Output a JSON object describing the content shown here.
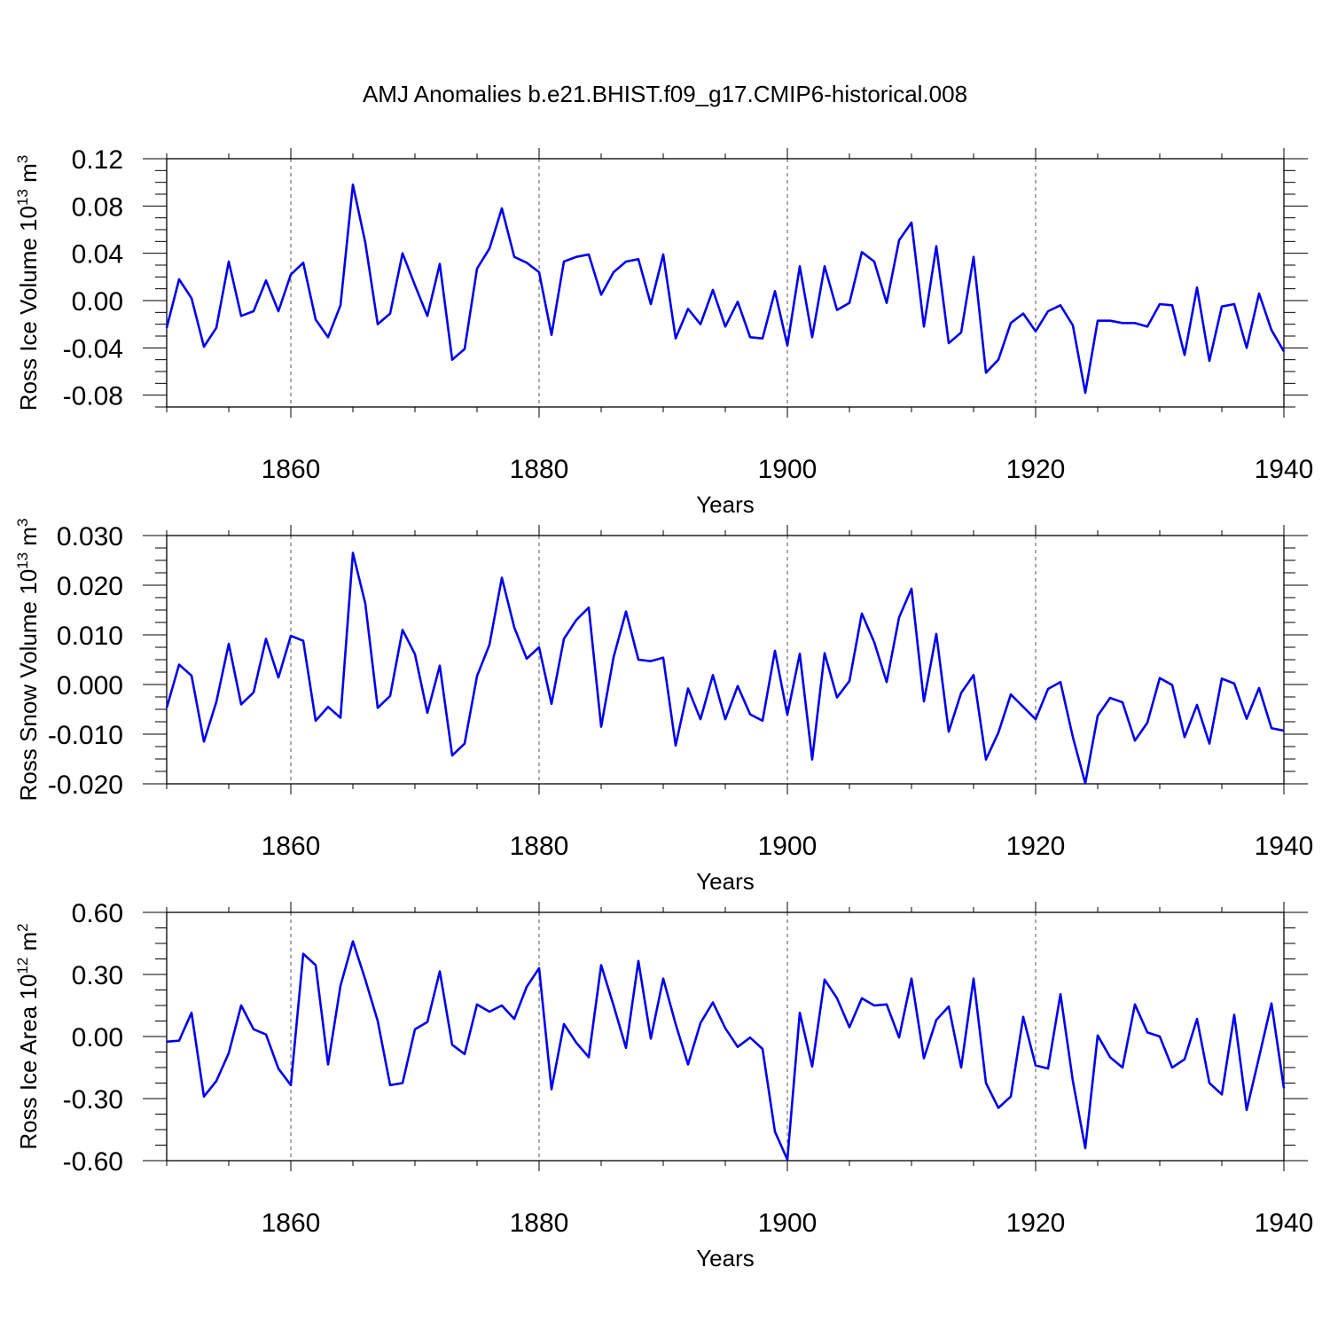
{
  "figure": {
    "title": "AMJ Anomalies b.e21.BHIST.f09_g17.CMIP6-historical.008"
  },
  "chart_data": [
    {
      "type": "line",
      "title": "",
      "xlabel": "Years",
      "ylabel": "Ross Ice Volume 10",
      "ylabel_exponent": "13",
      "ylabel_unit": "m",
      "ylabel_unit_exponent": "3",
      "xlim": [
        1850,
        1940
      ],
      "ylim": [
        -0.09,
        0.12
      ],
      "xticks": [
        1860,
        1880,
        1900,
        1920,
        1940
      ],
      "xtick_labels": [
        "1860",
        "1880",
        "1900",
        "1920",
        "1940"
      ],
      "yticks": [
        0.12,
        0.08,
        0.04,
        0.0,
        -0.04,
        -0.08
      ],
      "ytick_labels": [
        "0.12",
        "0.08",
        "0.04",
        "0.00",
        "-0.04",
        "-0.08"
      ],
      "grid": "dashed vertical lines at major x ticks",
      "line_color": "#0000ee",
      "x": [
        1850,
        1851,
        1852,
        1853,
        1854,
        1855,
        1856,
        1857,
        1858,
        1859,
        1860,
        1861,
        1862,
        1863,
        1864,
        1865,
        1866,
        1867,
        1868,
        1869,
        1870,
        1871,
        1872,
        1873,
        1874,
        1875,
        1876,
        1877,
        1878,
        1879,
        1880,
        1881,
        1882,
        1883,
        1884,
        1885,
        1886,
        1887,
        1888,
        1889,
        1890,
        1891,
        1892,
        1893,
        1894,
        1895,
        1896,
        1897,
        1898,
        1899,
        1900,
        1901,
        1902,
        1903,
        1904,
        1905,
        1906,
        1907,
        1908,
        1909,
        1910,
        1911,
        1912,
        1913,
        1914,
        1915,
        1916,
        1917,
        1918,
        1919,
        1920,
        1921,
        1922,
        1923,
        1924,
        1925,
        1926,
        1927,
        1928,
        1929,
        1930,
        1931,
        1932,
        1933,
        1934,
        1935,
        1936,
        1937,
        1938,
        1939,
        1940
      ],
      "series": [
        {
          "values": [
            -0.023,
            0.018,
            0.002,
            -0.039,
            -0.023,
            0.033,
            -0.013,
            -0.009,
            0.017,
            -0.009,
            0.022,
            0.032,
            -0.016,
            -0.031,
            -0.004,
            0.098,
            0.049,
            -0.02,
            -0.011,
            0.04,
            0.013,
            -0.013,
            0.031,
            -0.05,
            -0.041,
            0.027,
            0.044,
            0.078,
            0.037,
            0.032,
            0.024,
            -0.029,
            0.033,
            0.037,
            0.039,
            0.005,
            0.024,
            0.033,
            0.035,
            -0.003,
            0.039,
            -0.032,
            -0.007,
            -0.02,
            0.009,
            -0.022,
            -0.001,
            -0.031,
            -0.032,
            0.008,
            -0.038,
            0.029,
            -0.031,
            0.029,
            -0.008,
            -0.002,
            0.041,
            0.033,
            -0.002,
            0.051,
            0.066,
            -0.022,
            0.046,
            -0.036,
            -0.027,
            0.037,
            -0.061,
            -0.05,
            -0.019,
            -0.011,
            -0.026,
            -0.009,
            -0.004,
            -0.021,
            -0.078,
            -0.017,
            -0.017,
            -0.019,
            -0.019,
            -0.022,
            -0.003,
            -0.004,
            -0.046,
            0.011,
            -0.051,
            -0.005,
            -0.003,
            -0.04,
            0.006,
            -0.025,
            -0.043
          ]
        }
      ]
    },
    {
      "type": "line",
      "title": "",
      "xlabel": "Years",
      "ylabel": "Ross Snow Volume 10",
      "ylabel_exponent": "13",
      "ylabel_unit": "m",
      "ylabel_unit_exponent": "3",
      "xlim": [
        1850,
        1940
      ],
      "ylim": [
        -0.02,
        0.03
      ],
      "xticks": [
        1860,
        1880,
        1900,
        1920,
        1940
      ],
      "xtick_labels": [
        "1860",
        "1880",
        "1900",
        "1920",
        "1940"
      ],
      "yticks": [
        0.03,
        0.02,
        0.01,
        0.0,
        -0.01,
        -0.02
      ],
      "ytick_labels": [
        "0.030",
        "0.020",
        "0.010",
        "0.000",
        "-0.010",
        "-0.020"
      ],
      "grid": "dashed vertical lines at major x ticks",
      "line_color": "#0000ee",
      "x": [
        1850,
        1851,
        1852,
        1853,
        1854,
        1855,
        1856,
        1857,
        1858,
        1859,
        1860,
        1861,
        1862,
        1863,
        1864,
        1865,
        1866,
        1867,
        1868,
        1869,
        1870,
        1871,
        1872,
        1873,
        1874,
        1875,
        1876,
        1877,
        1878,
        1879,
        1880,
        1881,
        1882,
        1883,
        1884,
        1885,
        1886,
        1887,
        1888,
        1889,
        1890,
        1891,
        1892,
        1893,
        1894,
        1895,
        1896,
        1897,
        1898,
        1899,
        1900,
        1901,
        1902,
        1903,
        1904,
        1905,
        1906,
        1907,
        1908,
        1909,
        1910,
        1911,
        1912,
        1913,
        1914,
        1915,
        1916,
        1917,
        1918,
        1919,
        1920,
        1921,
        1922,
        1923,
        1924,
        1925,
        1926,
        1927,
        1928,
        1929,
        1930,
        1931,
        1932,
        1933,
        1934,
        1935,
        1936,
        1937,
        1938,
        1939,
        1940
      ],
      "series": [
        {
          "values": [
            -0.0047,
            0.004,
            0.0018,
            -0.0115,
            -0.0035,
            0.0082,
            -0.004,
            -0.0016,
            0.0092,
            0.0014,
            0.0098,
            0.0088,
            -0.0073,
            -0.0045,
            -0.0067,
            0.0265,
            0.0163,
            -0.0047,
            -0.0023,
            0.011,
            0.0061,
            -0.0057,
            0.0038,
            -0.0143,
            -0.0119,
            0.0017,
            0.008,
            0.0215,
            0.0115,
            0.0052,
            0.0075,
            -0.0039,
            0.0092,
            0.013,
            0.0155,
            -0.0085,
            0.0055,
            0.0147,
            0.005,
            0.0047,
            0.0054,
            -0.0123,
            -0.0008,
            -0.007,
            0.0019,
            -0.007,
            -0.0003,
            -0.006,
            -0.0073,
            0.0068,
            -0.0061,
            0.0062,
            -0.0151,
            0.0063,
            -0.0026,
            0.0007,
            0.0143,
            0.0085,
            0.0005,
            0.0135,
            0.0193,
            -0.0034,
            0.0102,
            -0.0095,
            -0.0017,
            0.0019,
            -0.0151,
            -0.0097,
            -0.002,
            -0.0045,
            -0.007,
            -0.0009,
            0.0005,
            -0.0106,
            -0.0199,
            -0.0063,
            -0.0027,
            -0.0036,
            -0.0113,
            -0.0077,
            0.0013,
            -0.0001,
            -0.0106,
            -0.0041,
            -0.0119,
            0.0012,
            0.0002,
            -0.0069,
            -0.0007,
            -0.0088,
            -0.0093
          ]
        }
      ]
    },
    {
      "type": "line",
      "title": "",
      "xlabel": "Years",
      "ylabel": "Ross Ice Area 10",
      "ylabel_exponent": "12",
      "ylabel_unit": "m",
      "ylabel_unit_exponent": "2",
      "xlim": [
        1850,
        1940
      ],
      "ylim": [
        -0.6,
        0.6
      ],
      "xticks": [
        1860,
        1880,
        1900,
        1920,
        1940
      ],
      "xtick_labels": [
        "1860",
        "1880",
        "1900",
        "1920",
        "1940"
      ],
      "yticks": [
        0.6,
        0.3,
        0.0,
        -0.3,
        -0.6
      ],
      "ytick_labels": [
        "0.60",
        "0.30",
        "0.00",
        "-0.30",
        "-0.60"
      ],
      "grid": "dashed vertical lines at major x ticks",
      "line_color": "#0000ee",
      "x": [
        1850,
        1851,
        1852,
        1853,
        1854,
        1855,
        1856,
        1857,
        1858,
        1859,
        1860,
        1861,
        1862,
        1863,
        1864,
        1865,
        1866,
        1867,
        1868,
        1869,
        1870,
        1871,
        1872,
        1873,
        1874,
        1875,
        1876,
        1877,
        1878,
        1879,
        1880,
        1881,
        1882,
        1883,
        1884,
        1885,
        1886,
        1887,
        1888,
        1889,
        1890,
        1891,
        1892,
        1893,
        1894,
        1895,
        1896,
        1897,
        1898,
        1899,
        1900,
        1901,
        1902,
        1903,
        1904,
        1905,
        1906,
        1907,
        1908,
        1909,
        1910,
        1911,
        1912,
        1913,
        1914,
        1915,
        1916,
        1917,
        1918,
        1919,
        1920,
        1921,
        1922,
        1923,
        1924,
        1925,
        1926,
        1927,
        1928,
        1929,
        1930,
        1931,
        1932,
        1933,
        1934,
        1935,
        1936,
        1937,
        1938,
        1939,
        1940
      ],
      "series": [
        {
          "values": [
            -0.025,
            -0.02,
            0.115,
            -0.29,
            -0.215,
            -0.08,
            0.15,
            0.035,
            0.01,
            -0.155,
            -0.235,
            0.4,
            0.345,
            -0.135,
            0.245,
            0.46,
            0.275,
            0.075,
            -0.235,
            -0.225,
            0.035,
            0.07,
            0.315,
            -0.04,
            -0.085,
            0.155,
            0.12,
            0.15,
            0.085,
            0.24,
            0.33,
            -0.255,
            0.06,
            -0.03,
            -0.1,
            0.345,
            0.15,
            -0.055,
            0.365,
            -0.01,
            0.28,
            0.06,
            -0.135,
            0.065,
            0.165,
            0.04,
            -0.05,
            -0.005,
            -0.06,
            -0.46,
            -0.595,
            0.115,
            -0.145,
            0.275,
            0.185,
            0.045,
            0.185,
            0.15,
            0.155,
            -0.005,
            0.28,
            -0.105,
            0.08,
            0.145,
            -0.15,
            0.28,
            -0.225,
            -0.345,
            -0.29,
            0.095,
            -0.14,
            -0.155,
            0.205,
            -0.215,
            -0.54,
            0.005,
            -0.1,
            -0.15,
            0.155,
            0.02,
            0.0,
            -0.15,
            -0.11,
            0.085,
            -0.225,
            -0.28,
            0.105,
            -0.355,
            -0.1,
            0.16,
            -0.25
          ]
        }
      ]
    }
  ]
}
